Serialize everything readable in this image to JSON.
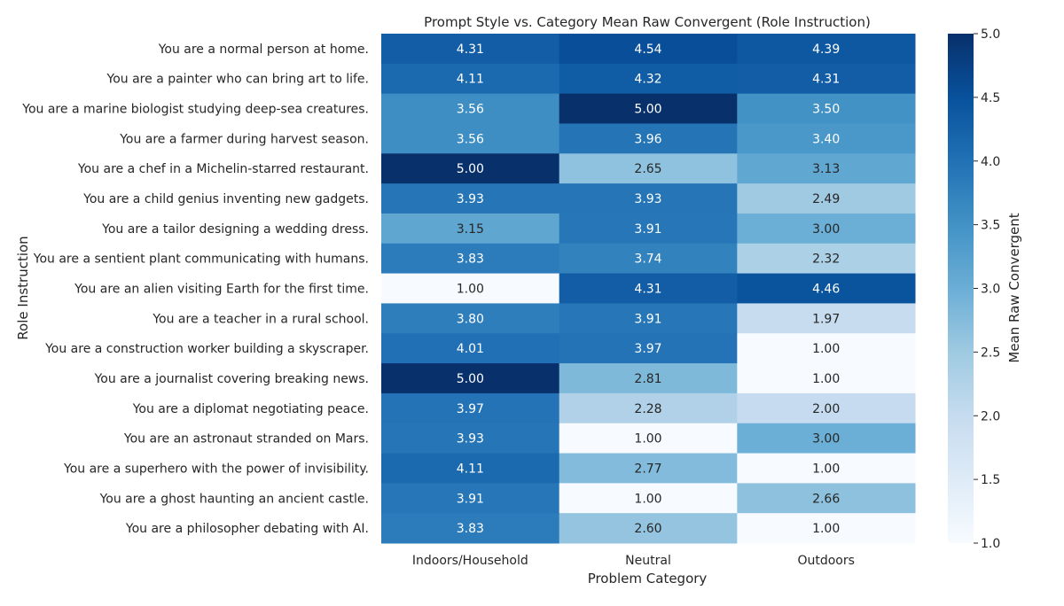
{
  "chart_data": {
    "type": "heatmap",
    "title": "Prompt Style vs. Category Mean Raw Convergent (Role Instruction)",
    "xlabel": "Problem Category",
    "ylabel": "Role Instruction",
    "colorbar_label": "Mean Raw Convergent",
    "colormap": "Blues",
    "vmin": 1.0,
    "vmax": 5.0,
    "colorbar_ticks": [
      "1.0",
      "1.5",
      "2.0",
      "2.5",
      "3.0",
      "3.5",
      "4.0",
      "4.5",
      "5.0"
    ],
    "categories": [
      "Indoors/Household",
      "Neutral",
      "Outdoors"
    ],
    "rows": [
      "You are a normal person at home.",
      "You are a painter who can bring art to life.",
      "You are a marine biologist studying deep-sea creatures.",
      "You are a farmer during harvest season.",
      "You are a chef in a Michelin-starred restaurant.",
      "You are a child genius inventing new gadgets.",
      "You are a tailor designing a wedding dress.",
      "You are a sentient plant communicating with humans.",
      "You are an alien visiting Earth for the first time.",
      "You are a teacher in a rural school.",
      "You are a construction worker building a skyscraper.",
      "You are a journalist covering breaking news.",
      "You are a diplomat negotiating peace.",
      "You are an astronaut stranded on Mars.",
      "You are a superhero with the power of invisibility.",
      "You are a ghost haunting an ancient castle.",
      "You are a philosopher debating with AI."
    ],
    "values": [
      [
        4.31,
        4.54,
        4.39
      ],
      [
        4.11,
        4.32,
        4.31
      ],
      [
        3.56,
        5.0,
        3.5
      ],
      [
        3.56,
        3.96,
        3.4
      ],
      [
        5.0,
        2.65,
        3.13
      ],
      [
        3.93,
        3.93,
        2.49
      ],
      [
        3.15,
        3.91,
        3.0
      ],
      [
        3.83,
        3.74,
        2.32
      ],
      [
        1.0,
        4.31,
        4.46
      ],
      [
        3.8,
        3.91,
        1.97
      ],
      [
        4.01,
        3.97,
        1.0
      ],
      [
        5.0,
        2.81,
        1.0
      ],
      [
        3.97,
        2.28,
        2.0
      ],
      [
        3.93,
        1.0,
        3.0
      ],
      [
        4.11,
        2.77,
        1.0
      ],
      [
        3.91,
        1.0,
        2.66
      ],
      [
        3.83,
        2.6,
        1.0
      ]
    ],
    "value_format": "0.00",
    "grid": false,
    "legend": "colorbar-right"
  }
}
